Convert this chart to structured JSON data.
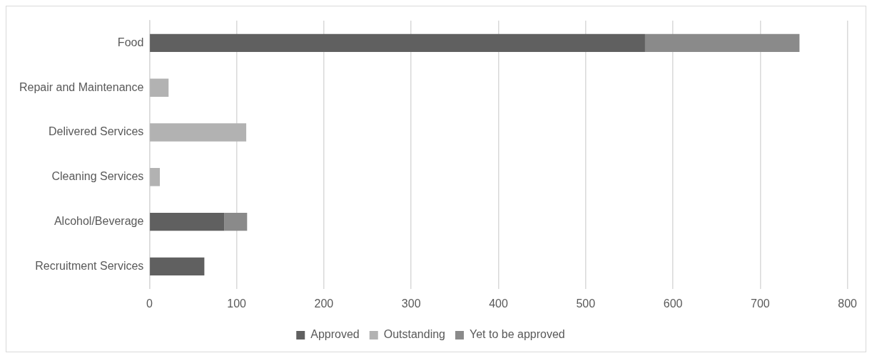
{
  "chart_data": {
    "type": "bar",
    "orientation": "horizontal",
    "stacked": true,
    "categories": [
      "Food",
      "Repair and Maintenance",
      "Delivered Services",
      "Cleaning Services",
      "Alcohol/Beverage",
      "Recruitment Services"
    ],
    "series": [
      {
        "name": "Approved",
        "color": "#606060",
        "values": [
          568,
          null,
          null,
          null,
          86,
          63
        ]
      },
      {
        "name": "Outstanding",
        "color": "#b2b2b2",
        "values": [
          null,
          22,
          111,
          12,
          null,
          null
        ]
      },
      {
        "name": "Yet to be approved",
        "color": "#8a8a8a",
        "values": [
          177,
          null,
          null,
          null,
          26,
          null
        ]
      }
    ],
    "xlim": [
      0,
      800
    ],
    "xticks": [
      0,
      100,
      200,
      300,
      400,
      500,
      600,
      700,
      800
    ],
    "grid": "x",
    "legend": "bottom"
  }
}
